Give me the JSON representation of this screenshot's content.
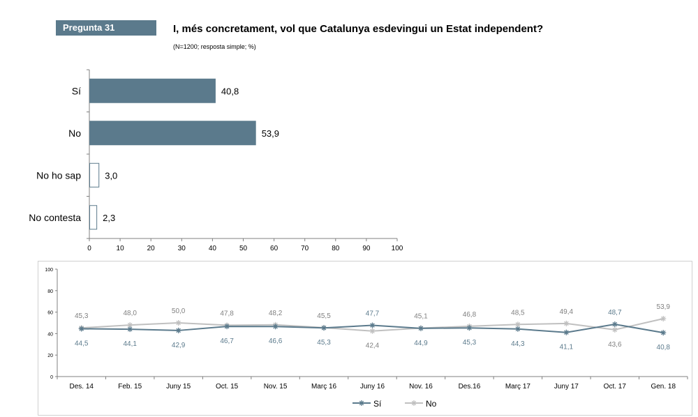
{
  "header": {
    "badge": "Pregunta 31",
    "title": "I, més concretament, vol que Catalunya esdevingui un Estat independent?",
    "subtitle": "(N=1200; resposta simple; %)"
  },
  "colors": {
    "primary": "#5b7a8c",
    "secondary": "#c0c0c0",
    "outline": "#5b7a8c"
  },
  "chart_data": [
    {
      "type": "bar",
      "orientation": "horizontal",
      "categories": [
        "Sí",
        "No",
        "No ho sap",
        "No contesta"
      ],
      "values": [
        40.8,
        53.9,
        3.0,
        2.3
      ],
      "value_labels": [
        "40,8",
        "53,9",
        "3,0",
        "2,3"
      ],
      "filled": [
        true,
        true,
        false,
        false
      ],
      "xlim": [
        0,
        100
      ],
      "xticks": [
        "0",
        "10",
        "20",
        "30",
        "40",
        "50",
        "60",
        "70",
        "80",
        "90",
        "100"
      ]
    },
    {
      "type": "line",
      "categories": [
        "Des. 14",
        "Feb. 15",
        "Juny 15",
        "Oct. 15",
        "Nov. 15",
        "Març 16",
        "Juny 16",
        "Nov. 16",
        "Des.16",
        "Març 17",
        "Juny 17",
        "Oct. 17",
        "Gen. 18"
      ],
      "ylim": [
        0,
        100
      ],
      "yticks": [
        "0",
        "20",
        "40",
        "60",
        "80",
        "100"
      ],
      "legend_position": "bottom",
      "series": [
        {
          "name": "Sí",
          "color": "#5b7a8c",
          "marker": "asterisk",
          "values": [
            44.5,
            44.1,
            42.9,
            46.7,
            46.6,
            45.3,
            47.7,
            44.9,
            45.3,
            44.3,
            41.1,
            48.7,
            40.8
          ],
          "labels": [
            "44,5",
            "44,1",
            "42,9",
            "46,7",
            "46,6",
            "45,3",
            "47,7",
            "44,9",
            "45,3",
            "44,3",
            "41,1",
            "48,7",
            "40,8"
          ]
        },
        {
          "name": "No",
          "color": "#c0c0c0",
          "marker": "asterisk",
          "values": [
            45.3,
            48.0,
            50.0,
            47.8,
            48.2,
            45.5,
            42.4,
            45.1,
            46.8,
            48.5,
            49.4,
            43.6,
            53.9
          ],
          "labels": [
            "45,3",
            "48,0",
            "50,0",
            "47,8",
            "48,2",
            "45,5",
            "42,4",
            "45,1",
            "46,8",
            "48,5",
            "49,4",
            "43,6",
            "53,9"
          ]
        }
      ]
    }
  ]
}
